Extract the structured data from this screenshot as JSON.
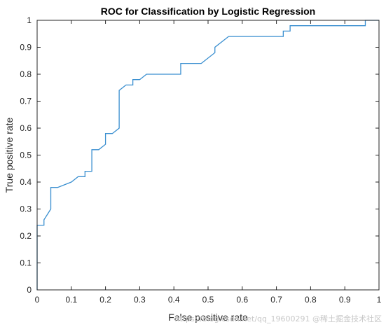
{
  "chart_data": {
    "type": "line",
    "title": "ROC for Classification by Logistic Regression",
    "xlabel": "False positive rate",
    "ylabel": "True positive rate",
    "xlim": [
      0,
      1
    ],
    "ylim": [
      0,
      1
    ],
    "xticks": [
      "0",
      "0.1",
      "0.2",
      "0.3",
      "0.4",
      "0.5",
      "0.6",
      "0.7",
      "0.8",
      "0.9",
      "1"
    ],
    "yticks": [
      "0",
      "0.1",
      "0.2",
      "0.3",
      "0.4",
      "0.5",
      "0.6",
      "0.7",
      "0.8",
      "0.9",
      "1"
    ],
    "grid": false,
    "line_color": "#3a8fd0",
    "series": [
      {
        "x": [
          0,
          0,
          0.02,
          0.02,
          0.04,
          0.04,
          0.06,
          0.1,
          0.12,
          0.14,
          0.14,
          0.16,
          0.16,
          0.18,
          0.2,
          0.2,
          0.22,
          0.24,
          0.24,
          0.26,
          0.28,
          0.28,
          0.3,
          0.32,
          0.42,
          0.42,
          0.48,
          0.52,
          0.52,
          0.56,
          0.72,
          0.72,
          0.74,
          0.74,
          0.96,
          0.96,
          1.0
        ],
        "y": [
          0,
          0.24,
          0.24,
          0.26,
          0.3,
          0.38,
          0.38,
          0.4,
          0.42,
          0.42,
          0.44,
          0.44,
          0.52,
          0.52,
          0.54,
          0.58,
          0.58,
          0.6,
          0.74,
          0.76,
          0.76,
          0.78,
          0.78,
          0.8,
          0.8,
          0.84,
          0.84,
          0.88,
          0.9,
          0.94,
          0.94,
          0.96,
          0.96,
          0.98,
          0.98,
          1.0,
          1.0
        ]
      }
    ]
  },
  "watermark": "https://blog.csdn.net/qq_19600291 @稀土掘金技术社区"
}
